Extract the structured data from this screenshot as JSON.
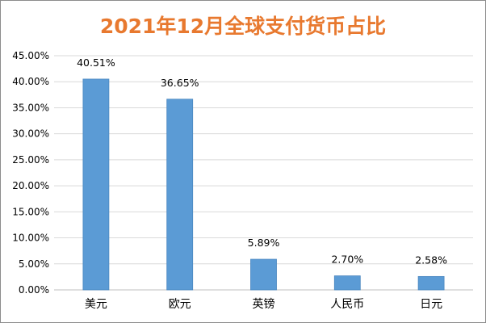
{
  "chart_data": {
    "type": "bar",
    "title": "2021年12月全球支付货币占比",
    "xlabel": "",
    "ylabel": "",
    "categories": [
      "美元",
      "欧元",
      "英镑",
      "人民币",
      "日元"
    ],
    "values": [
      40.51,
      36.65,
      5.89,
      2.7,
      2.58
    ],
    "value_labels": [
      "40.51%",
      "36.65%",
      "5.89%",
      "2.70%",
      "2.58%"
    ],
    "ylim": [
      0,
      45
    ],
    "yticks": [
      0,
      5,
      10,
      15,
      20,
      25,
      30,
      35,
      40,
      45
    ],
    "ytick_labels": [
      "0.00%",
      "5.00%",
      "10.00%",
      "15.00%",
      "20.00%",
      "25.00%",
      "30.00%",
      "35.00%",
      "40.00%",
      "45.00%"
    ],
    "grid": true,
    "legend": "none"
  },
  "colors": {
    "title": "#e8792f",
    "bar": "#5b9bd5",
    "bar_edge": "#4a87c0",
    "grid": "#d9d9d9",
    "axis": "#bfbfbf"
  }
}
